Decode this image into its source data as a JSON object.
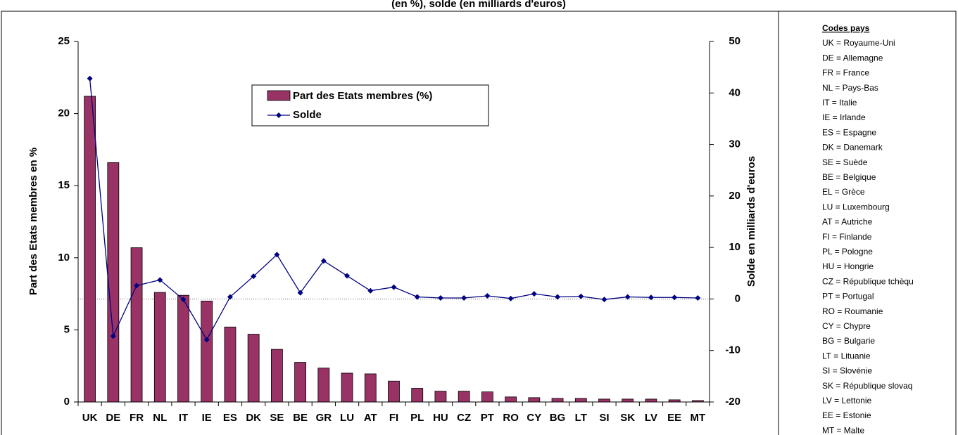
{
  "chart_data": {
    "type": "bar_line",
    "title": "(en %), solde (en milliards d'euros)",
    "y_label": "Part des Etats membres en %",
    "y2_label": "Solde en milliards d'euros",
    "categories": [
      "UK",
      "DE",
      "FR",
      "NL",
      "IT",
      "IE",
      "ES",
      "DK",
      "SE",
      "BE",
      "GR",
      "LU",
      "AT",
      "FI",
      "PL",
      "HU",
      "CZ",
      "PT",
      "RO",
      "CY",
      "BG",
      "LT",
      "SI",
      "SK",
      "LV",
      "EE",
      "MT"
    ],
    "series": [
      {
        "name": "Part des Etats membres (%)",
        "color": "#993366",
        "type": "bar",
        "values": [
          21.2,
          16.6,
          10.7,
          7.6,
          7.4,
          7.0,
          5.2,
          4.7,
          3.65,
          2.75,
          2.35,
          2.0,
          1.95,
          1.45,
          0.95,
          0.75,
          0.75,
          0.7,
          0.35,
          0.3,
          0.25,
          0.25,
          0.2,
          0.2,
          0.2,
          0.15,
          0.1
        ]
      },
      {
        "name": "Solde",
        "color": "#000080",
        "type": "line",
        "axis": "y2",
        "values": [
          42.8,
          -7.2,
          2.6,
          3.7,
          -0.1,
          -7.9,
          0.4,
          4.4,
          8.6,
          1.2,
          7.4,
          4.5,
          1.6,
          2.3,
          0.4,
          0.2,
          0.2,
          0.6,
          0.1,
          1.0,
          0.4,
          0.5,
          -0.1,
          0.4,
          0.3,
          0.3,
          0.2
        ]
      }
    ],
    "ylim": [
      0,
      25
    ],
    "yticks": [
      0,
      5,
      10,
      15,
      20,
      25
    ],
    "y2lim": [
      -20,
      50
    ],
    "y2ticks": [
      -20,
      -10,
      0,
      10,
      20,
      30,
      40,
      50
    ],
    "zero_line_y2": 0,
    "legend": "top-center"
  },
  "codes": {
    "title": "Codes pays",
    "items": [
      "UK = Royaume-Uni",
      "DE = Allemagne",
      "FR = France",
      "NL = Pays-Bas",
      "IT = Italie",
      "IE = Irlande",
      "ES = Espagne",
      "DK = Danemark",
      "SE = Suède",
      "BE = Belgique",
      "EL = Grèce",
      "LU = Luxembourg",
      "AT = Autriche",
      "FI = Finlande",
      "PL = Pologne",
      "HU = Hongrie",
      "CZ = République tchèqu",
      "PT = Portugal",
      "RO = Roumanie",
      "CY = Chypre",
      "BG = Bulgarie",
      "LT = Lituanie",
      "SI = Slovénie",
      "SK = République slovaq",
      "LV = Lettonie",
      "EE = Estonie",
      "MT = Malte"
    ]
  }
}
